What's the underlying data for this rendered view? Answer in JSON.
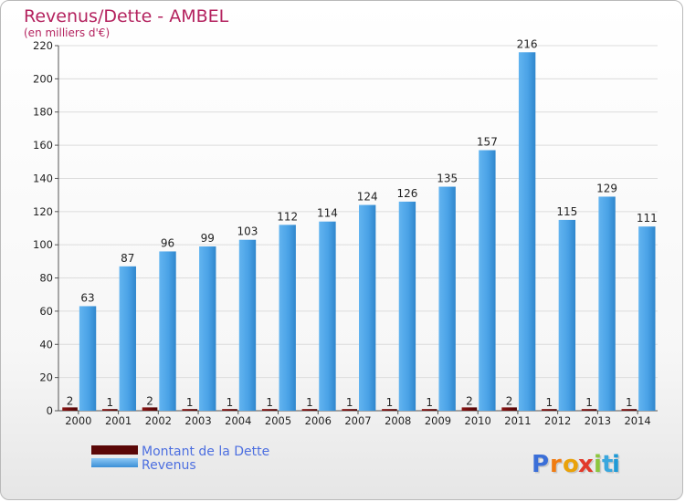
{
  "chart_data": {
    "type": "bar",
    "title": "Revenus/Dette - AMBEL",
    "subtitle": "(en milliers d'€)",
    "categories": [
      "2000",
      "2001",
      "2002",
      "2003",
      "2004",
      "2005",
      "2006",
      "2007",
      "2008",
      "2009",
      "2010",
      "2011",
      "2012",
      "2013",
      "2014"
    ],
    "series": [
      {
        "name": "Montant de la Dette",
        "color": "#6b0a0a",
        "values": [
          2,
          1,
          2,
          1,
          1,
          1,
          1,
          1,
          1,
          1,
          2,
          2,
          1,
          1,
          1
        ]
      },
      {
        "name": "Revenus",
        "color": "#4a9fe0",
        "values": [
          63,
          87,
          96,
          99,
          103,
          112,
          114,
          124,
          126,
          135,
          157,
          216,
          115,
          129,
          111
        ]
      }
    ],
    "ylim": [
      0,
      220
    ],
    "yticks": [
      0,
      20,
      40,
      60,
      80,
      100,
      120,
      140,
      160,
      180,
      200,
      220
    ],
    "grid": true,
    "legend_position": "bottom-left"
  },
  "brand": {
    "logo_text": "Proxiti",
    "letters": [
      "P",
      "r",
      "o",
      "x",
      "i",
      "t",
      "i"
    ]
  }
}
